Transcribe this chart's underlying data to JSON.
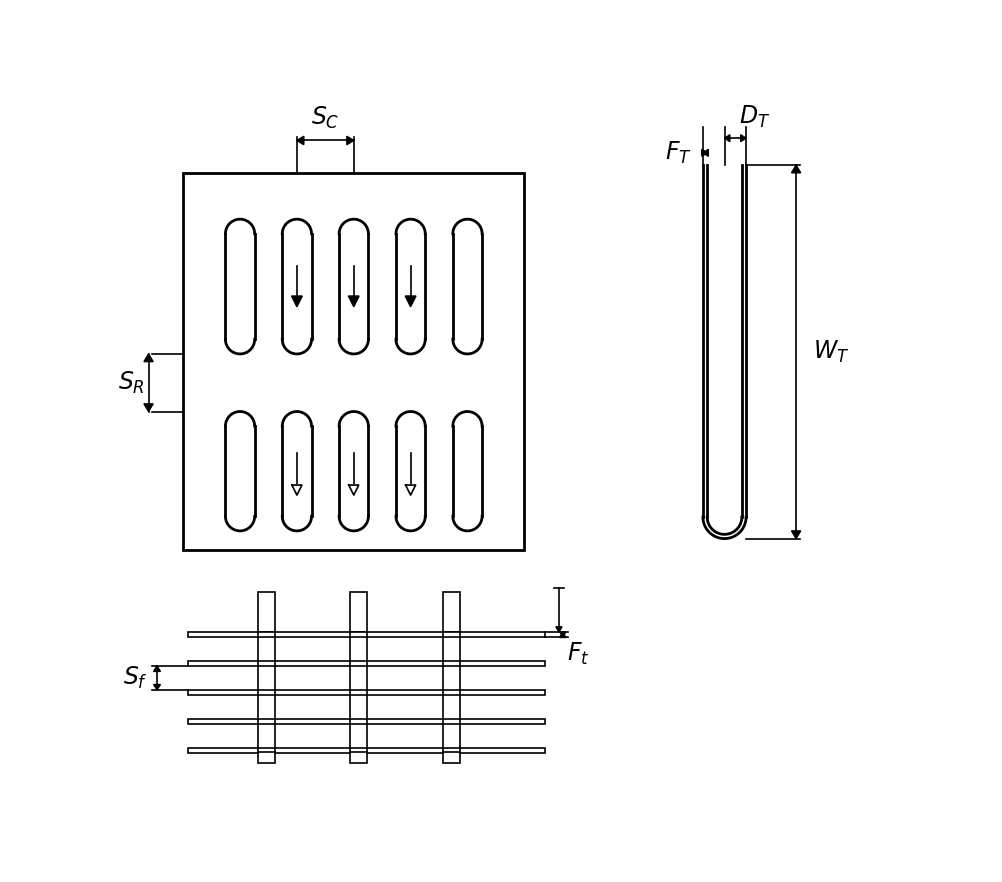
{
  "bg_color": "#ffffff",
  "line_color": "#000000",
  "fig_width": 10.02,
  "fig_height": 8.82,
  "dpi": 100,
  "lw_thin": 1.2,
  "lw_thick": 2.0
}
